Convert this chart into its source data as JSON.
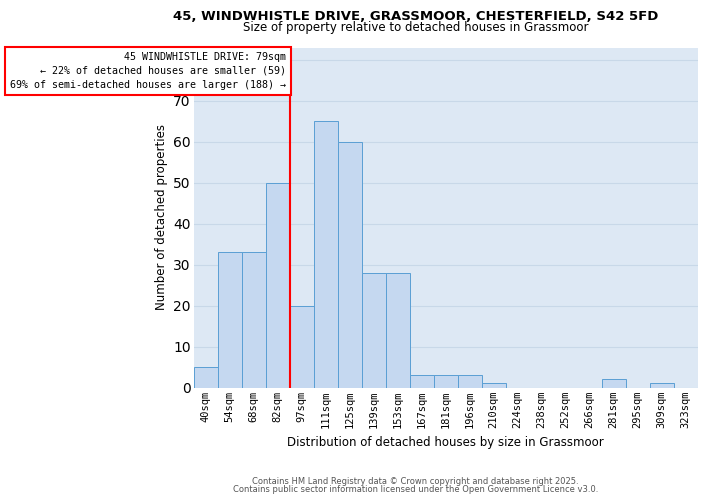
{
  "title1": "45, WINDWHISTLE DRIVE, GRASSMOOR, CHESTERFIELD, S42 5FD",
  "title2": "Size of property relative to detached houses in Grassmoor",
  "xlabel": "Distribution of detached houses by size in Grassmoor",
  "ylabel": "Number of detached properties",
  "categories": [
    "40sqm",
    "54sqm",
    "68sqm",
    "82sqm",
    "97sqm",
    "111sqm",
    "125sqm",
    "139sqm",
    "153sqm",
    "167sqm",
    "181sqm",
    "196sqm",
    "210sqm",
    "224sqm",
    "238sqm",
    "252sqm",
    "266sqm",
    "281sqm",
    "295sqm",
    "309sqm",
    "323sqm"
  ],
  "values": [
    5,
    33,
    33,
    50,
    20,
    65,
    60,
    28,
    28,
    3,
    3,
    3,
    1,
    0,
    0,
    0,
    0,
    2,
    0,
    1,
    0
  ],
  "bar_color": "#c5d8f0",
  "bar_edgecolor": "#5a9fd4",
  "property_line_x": 3.5,
  "annotation_text": "45 WINDWHISTLE DRIVE: 79sqm\n← 22% of detached houses are smaller (59)\n69% of semi-detached houses are larger (188) →",
  "vline_color": "red",
  "box_edgecolor": "red",
  "ylim": [
    0,
    83
  ],
  "yticks": [
    0,
    10,
    20,
    30,
    40,
    50,
    60,
    70,
    80
  ],
  "grid_color": "#c8d8e8",
  "background_color": "#dde8f4",
  "footer1": "Contains HM Land Registry data © Crown copyright and database right 2025.",
  "footer2": "Contains public sector information licensed under the Open Government Licence v3.0."
}
